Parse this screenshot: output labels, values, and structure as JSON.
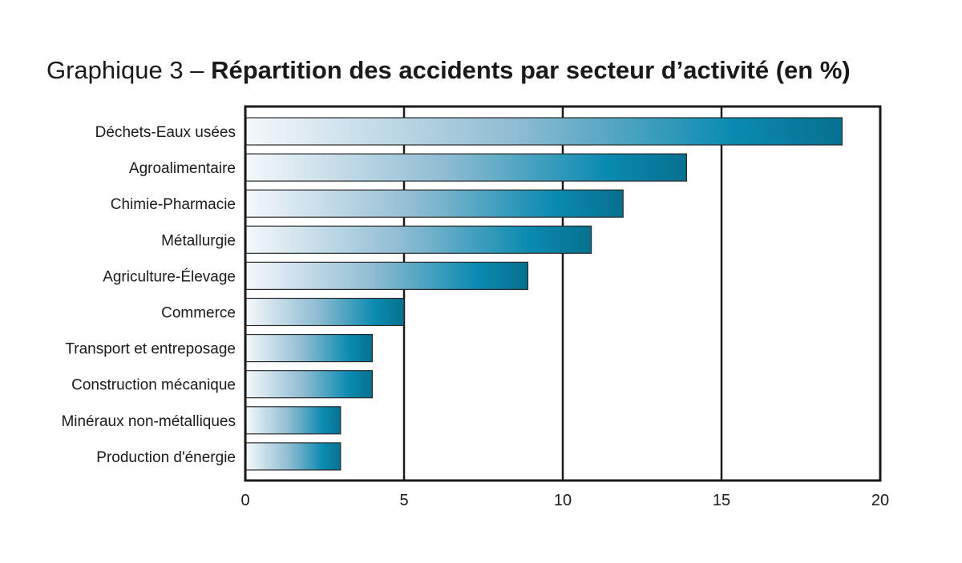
{
  "title": {
    "prefix": "Graphique 3 –",
    "main": "Répartition des accidents par secteur d’activité (en %)"
  },
  "colors": {
    "bar_start": "#f4f8fb",
    "bar_mid": "#8fbcd2",
    "bar_accent": "#0a8ab0",
    "bar_end": "#07708f",
    "axis": "#1a1a1a"
  },
  "chart_data": {
    "type": "bar",
    "orientation": "horizontal",
    "categories": [
      "Déchets-Eaux usées",
      "Agroalimentaire",
      "Chimie-Pharmacie",
      "Métallurgie",
      "Agriculture-Élevage",
      "Commerce",
      "Transport et entreposage",
      "Construction mécanique",
      "Minéraux non-métalliques",
      "Production d'énergie"
    ],
    "values": [
      18.8,
      13.9,
      11.9,
      10.9,
      8.9,
      5,
      4,
      4,
      3,
      3
    ],
    "xlim": [
      0,
      20
    ],
    "xticks": [
      0,
      5,
      10,
      15,
      20
    ],
    "grid": true,
    "xlabel": "",
    "ylabel": ""
  }
}
